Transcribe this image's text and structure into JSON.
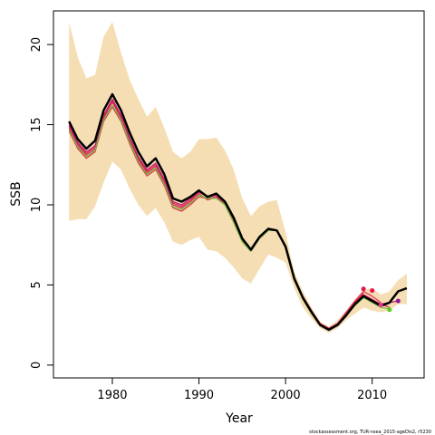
{
  "chart_data": {
    "type": "line",
    "title": "",
    "xlabel": "Year",
    "ylabel": "SSB",
    "xlim": [
      1973.2,
      2016.0
    ],
    "ylim": [
      -0.8,
      22.1
    ],
    "x_ticks": [
      1980,
      1990,
      2000,
      2010
    ],
    "y_ticks": [
      0,
      5,
      10,
      15,
      20
    ],
    "grid": false,
    "legend": "none",
    "credit": "stockassessment.org, TUR-nsea_2015-ageDis2, r5230",
    "x": [
      1975,
      1976,
      1977,
      1978,
      1979,
      1980,
      1981,
      1982,
      1983,
      1984,
      1985,
      1986,
      1987,
      1988,
      1989,
      1990,
      1991,
      1992,
      1993,
      1994,
      1995,
      1996,
      1997,
      1998,
      1999,
      2000,
      2001,
      2002,
      2003,
      2004,
      2005,
      2006,
      2007,
      2008,
      2009,
      2010,
      2011,
      2012,
      2013,
      2014
    ],
    "confidence_band": {
      "color": "#f5deb3",
      "upper": [
        21.4,
        19.2,
        17.9,
        18.1,
        20.5,
        21.4,
        19.5,
        17.8,
        16.6,
        15.5,
        16.1,
        14.8,
        13.3,
        12.9,
        13.3,
        14.1,
        14.1,
        14.2,
        13.4,
        12.2,
        10.4,
        9.3,
        9.9,
        10.2,
        10.3,
        8.3,
        5.8,
        4.6,
        3.6,
        2.7,
        2.4,
        2.8,
        3.4,
        4.1,
        4.7,
        4.8,
        4.4,
        4.6,
        5.3,
        5.7
      ],
      "lower": [
        9.0,
        9.1,
        9.1,
        9.9,
        11.4,
        12.7,
        12.2,
        11.0,
        10.0,
        9.3,
        9.8,
        8.9,
        7.7,
        7.5,
        7.8,
        8.0,
        7.2,
        7.1,
        6.7,
        6.1,
        5.4,
        5.1,
        6.0,
        6.9,
        6.7,
        6.4,
        4.8,
        3.6,
        2.9,
        2.3,
        2.0,
        2.3,
        2.8,
        3.2,
        3.6,
        3.4,
        3.3,
        3.4,
        3.8,
        3.8
      ]
    },
    "series": [
      {
        "color": "#000000",
        "width": 2.5,
        "values": [
          15.2,
          14.1,
          13.5,
          14.0,
          15.9,
          16.9,
          15.9,
          14.5,
          13.3,
          12.4,
          12.9,
          11.9,
          10.4,
          10.2,
          10.5,
          10.9,
          10.5,
          10.7,
          10.2,
          9.2,
          7.9,
          7.2,
          8.0,
          8.5,
          8.4,
          7.4,
          5.4,
          4.2,
          3.3,
          2.5,
          2.2,
          2.5,
          3.1,
          3.8,
          4.3,
          4.0,
          3.7,
          3.9,
          4.6,
          4.8
        ]
      },
      {
        "color": "#e0304f",
        "width": 1.2,
        "values": [
          14.8,
          13.7,
          13.1,
          13.5,
          15.4,
          16.4,
          15.4,
          14.0,
          12.8,
          12.0,
          12.4,
          11.4,
          10.0,
          9.8,
          10.2,
          10.7,
          10.3,
          10.5,
          10.1,
          9.0,
          7.8,
          7.2,
          8.0,
          8.5,
          8.4,
          7.4,
          5.4,
          4.3,
          3.4,
          2.6,
          2.3,
          2.6,
          3.3,
          4.0,
          4.6,
          4.3,
          3.9,
          null,
          null,
          null
        ]
      },
      {
        "color": "#e0304f",
        "width": 1.2,
        "values": [
          14.6,
          13.5,
          12.9,
          13.3,
          15.2,
          16.1,
          15.2,
          13.8,
          12.6,
          11.8,
          12.2,
          11.2,
          9.8,
          9.6,
          10.0,
          10.5,
          10.4,
          10.5,
          10.0,
          8.9,
          7.7,
          7.1,
          7.9,
          8.4,
          8.4,
          7.3,
          5.3,
          4.2,
          3.3,
          2.5,
          2.2,
          2.5,
          3.2,
          3.9,
          4.5,
          null,
          null,
          null,
          null,
          null
        ]
      },
      {
        "color": "#d62060",
        "width": 1.2,
        "values": [
          14.9,
          13.8,
          13.2,
          13.6,
          15.5,
          16.5,
          15.5,
          14.1,
          12.9,
          12.1,
          12.5,
          11.5,
          10.1,
          9.9,
          10.3,
          10.8,
          10.5,
          10.6,
          10.1,
          9.0,
          7.8,
          7.2,
          8.0,
          8.4,
          8.4,
          7.3,
          5.3,
          4.2,
          3.3,
          2.5,
          2.2,
          2.5,
          3.2,
          3.9,
          4.4,
          4.1,
          3.8,
          3.6,
          null,
          null
        ]
      },
      {
        "color": "#c0206e",
        "width": 1.2,
        "values": [
          15.0,
          13.9,
          13.3,
          13.7,
          15.6,
          16.6,
          15.6,
          14.2,
          13.0,
          12.2,
          12.6,
          11.6,
          10.2,
          10.0,
          10.4,
          10.8,
          10.5,
          10.6,
          10.1,
          9.1,
          7.8,
          7.2,
          8.0,
          8.5,
          8.4,
          7.4,
          5.4,
          4.2,
          3.3,
          2.5,
          2.2,
          2.5,
          3.1,
          3.8,
          4.3,
          4.0,
          3.8,
          3.9,
          4.0,
          null
        ]
      },
      {
        "color": "#6bbf3a",
        "width": 1.2,
        "values": [
          14.7,
          13.6,
          13.0,
          13.4,
          15.3,
          16.2,
          15.3,
          13.9,
          12.7,
          11.9,
          12.3,
          11.3,
          9.9,
          9.7,
          10.1,
          10.6,
          10.4,
          10.4,
          10.0,
          8.9,
          7.7,
          7.1,
          7.9,
          8.4,
          8.4,
          7.3,
          5.3,
          4.1,
          3.2,
          2.5,
          2.2,
          2.5,
          3.1,
          3.7,
          4.2,
          3.9,
          3.6,
          3.5,
          null,
          null
        ]
      }
    ],
    "endpoints": [
      {
        "x": 2009,
        "y": 4.75,
        "color": "#e8114a"
      },
      {
        "x": 2010,
        "y": 4.65,
        "color": "#e8114a"
      },
      {
        "x": 2011,
        "y": 3.75,
        "color": "#e83090"
      },
      {
        "x": 2012,
        "y": 3.45,
        "color": "#55cc22"
      },
      {
        "x": 2013,
        "y": 4.0,
        "color": "#8a1a9a"
      }
    ]
  }
}
